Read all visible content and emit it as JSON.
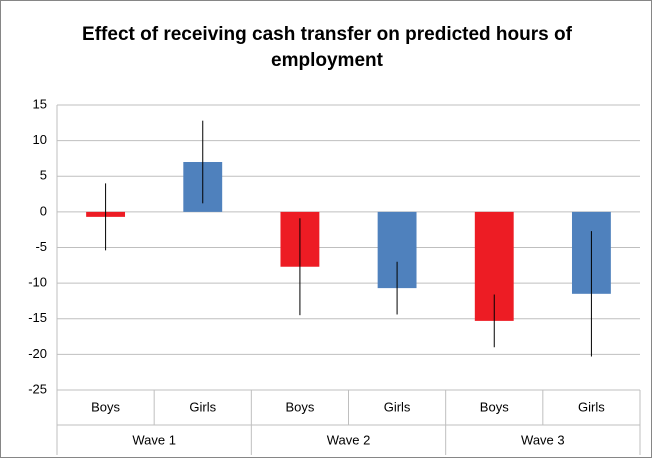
{
  "chart_data": {
    "type": "bar",
    "title": "Effect of receiving cash transfer on predicted hours of employment",
    "categories": [
      "Boys",
      "Girls",
      "Boys",
      "Girls",
      "Boys",
      "Girls"
    ],
    "groups": [
      "Wave 1",
      "Wave 2",
      "Wave 3"
    ],
    "values": [
      -0.7,
      7.0,
      -7.7,
      -10.7,
      -15.3,
      -11.5
    ],
    "errors": [
      4.7,
      5.8,
      6.8,
      3.7,
      3.7,
      8.8
    ],
    "colors": [
      "#ed1c24",
      "#4f81bd",
      "#ed1c24",
      "#4f81bd",
      "#ed1c24",
      "#4f81bd"
    ],
    "ylim": [
      -25,
      15
    ],
    "yticks": [
      15,
      10,
      5,
      0,
      -5,
      -10,
      -15,
      -20,
      -25
    ],
    "grid": true
  }
}
